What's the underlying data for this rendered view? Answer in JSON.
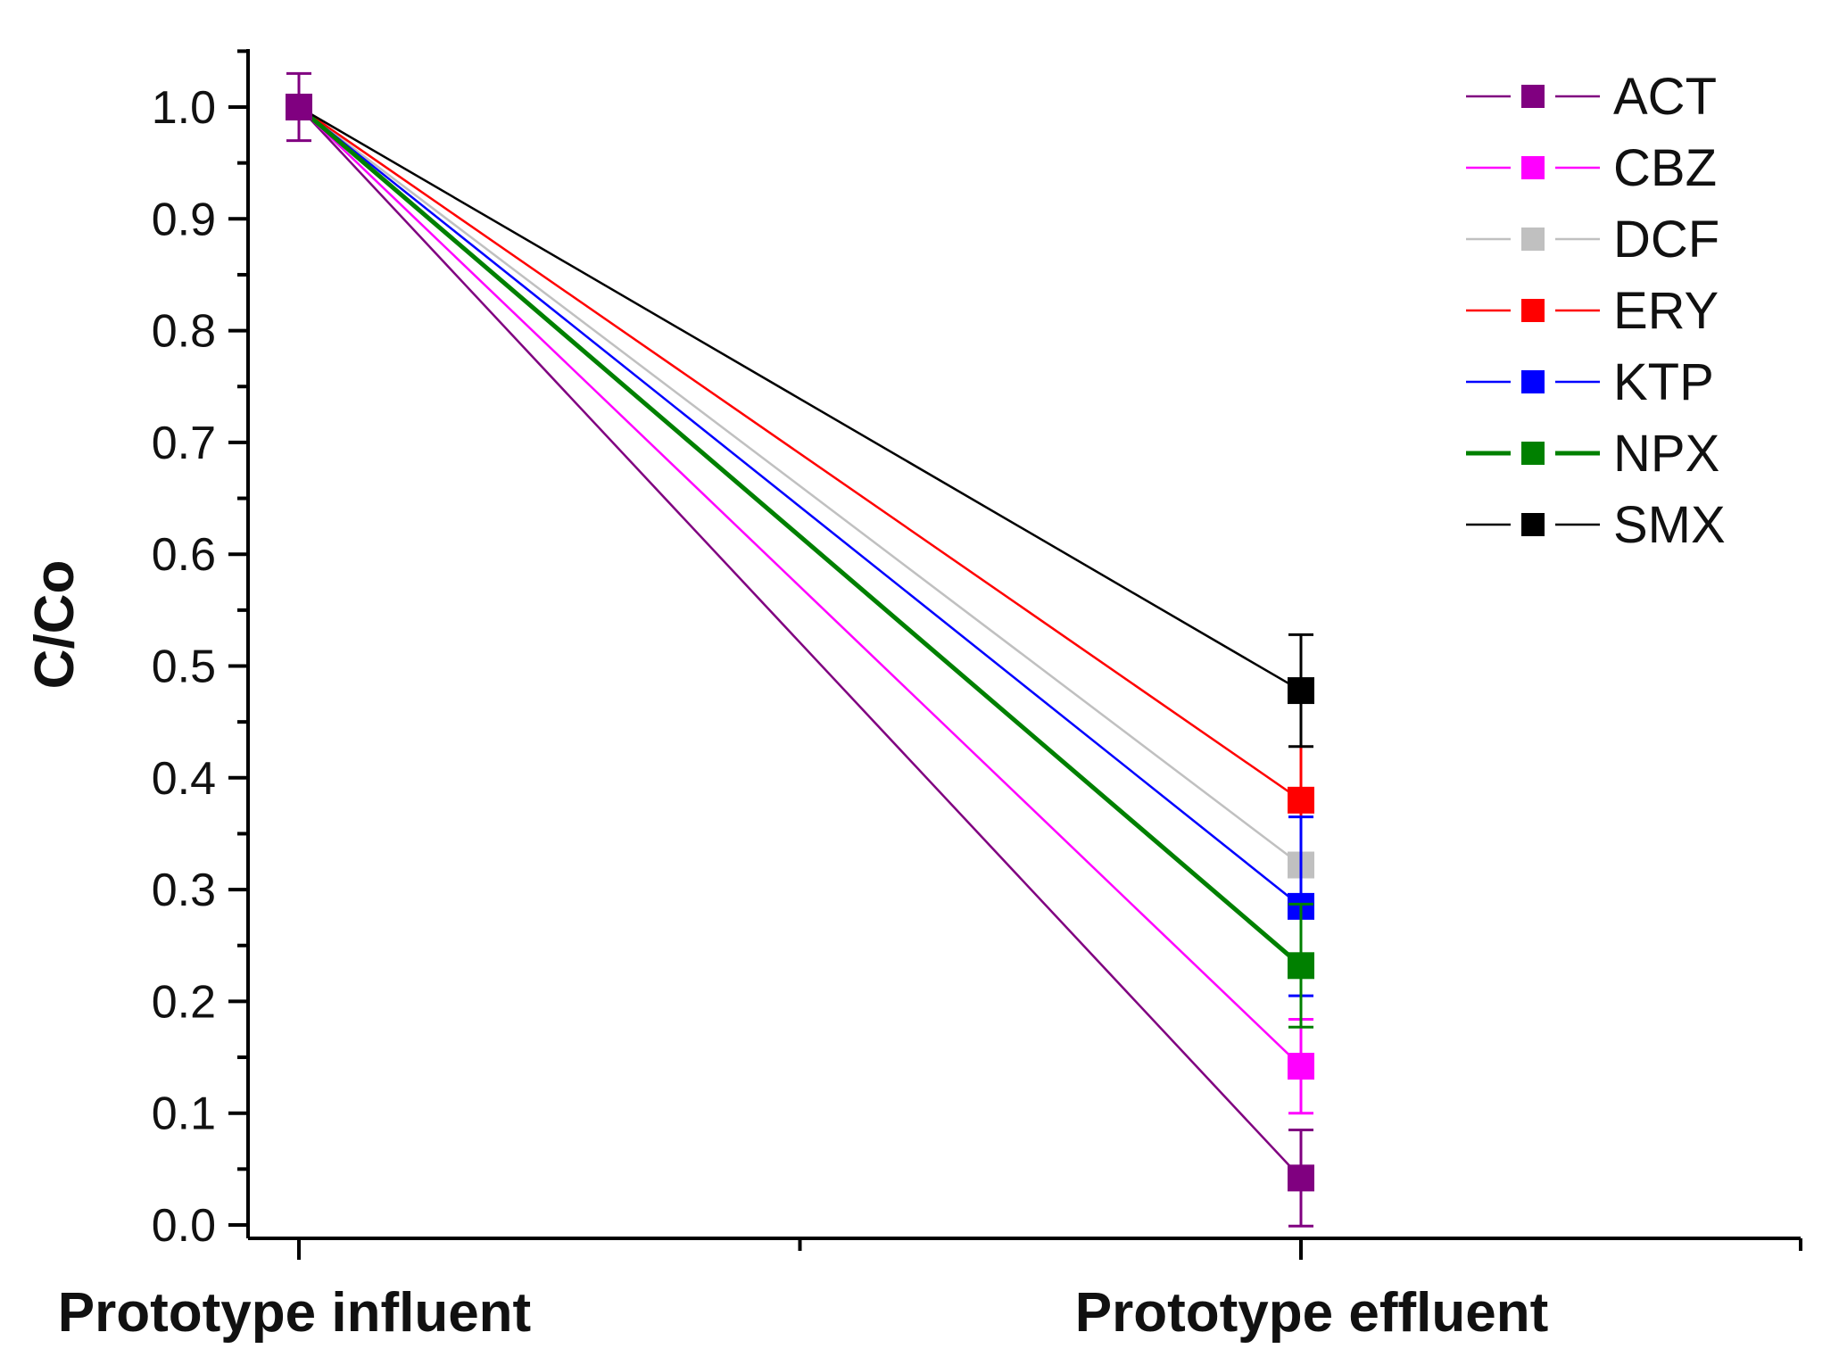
{
  "chart_data": {
    "type": "line",
    "title": "",
    "xlabel": "",
    "ylabel": "C/Co",
    "categories": [
      "Prototype influent",
      "Prototype effluent"
    ],
    "ylim": [
      0.0,
      1.0
    ],
    "yticks": [
      "0.0",
      "0.1",
      "0.2",
      "0.3",
      "0.4",
      "0.5",
      "0.6",
      "0.7",
      "0.8",
      "0.9",
      "1.0"
    ],
    "legend_position": "top-right",
    "series": [
      {
        "name": "ACT",
        "color": "#800080",
        "values": [
          1.0,
          0.042
        ],
        "errors": [
          0.03,
          0.043
        ]
      },
      {
        "name": "CBZ",
        "color": "#ff00ff",
        "values": [
          1.0,
          0.142
        ],
        "errors": [
          0.0,
          0.042
        ]
      },
      {
        "name": "DCF",
        "color": "#c0c0c0",
        "values": [
          1.0,
          0.322
        ],
        "errors": [
          0.0,
          0.0
        ]
      },
      {
        "name": "ERY",
        "color": "#ff0000",
        "values": [
          1.0,
          0.38
        ],
        "errors": [
          0.0,
          0.09
        ]
      },
      {
        "name": "KTP",
        "color": "#0000ff",
        "values": [
          1.0,
          0.285
        ],
        "errors": [
          0.0,
          0.08
        ]
      },
      {
        "name": "NPX",
        "color": "#008000",
        "values": [
          1.0,
          0.232
        ],
        "errors": [
          0.0,
          0.055
        ]
      },
      {
        "name": "SMX",
        "color": "#000000",
        "values": [
          1.0,
          0.478
        ],
        "errors": [
          0.0,
          0.05
        ]
      }
    ]
  }
}
